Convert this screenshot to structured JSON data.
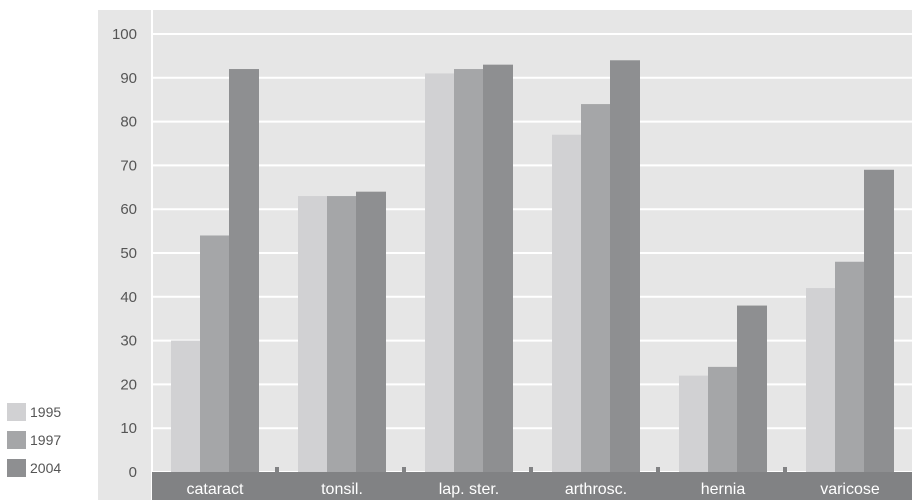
{
  "chart_data": {
    "type": "bar",
    "categories": [
      "cataract",
      "tonsil.",
      "lap. ster.",
      "arthrosc.",
      "hernia",
      "varicose"
    ],
    "series": [
      {
        "name": "1995",
        "values": [
          30,
          63,
          91,
          77,
          22,
          42
        ]
      },
      {
        "name": "1997",
        "values": [
          54,
          63,
          92,
          84,
          24,
          48
        ]
      },
      {
        "name": "2004",
        "values": [
          92,
          64,
          93,
          94,
          38,
          69
        ]
      }
    ],
    "ylim": [
      0,
      100
    ],
    "yticks": [
      0,
      10,
      20,
      30,
      40,
      50,
      60,
      70,
      80,
      90,
      100
    ],
    "grid": true,
    "legend_position": "bottom-left",
    "title": "",
    "xlabel": "",
    "ylabel": ""
  },
  "colors": {
    "plot_background": "#e6e6e6",
    "grid": "#ffffff",
    "series": [
      "#d1d1d3",
      "#a5a6a8",
      "#8e8f91"
    ],
    "category_band": "#818284",
    "category_text": "#ffffff",
    "tick_text": "#555555"
  }
}
